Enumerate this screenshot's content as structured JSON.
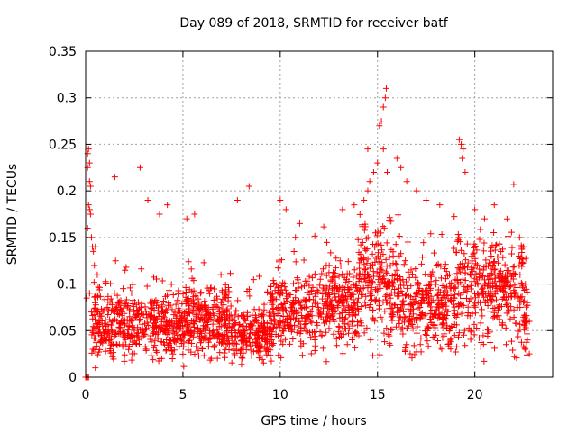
{
  "chart_data": {
    "type": "scatter",
    "title": "Day 089 of 2018, SRMTID for receiver batf",
    "xlabel": "GPS time / hours",
    "ylabel": "SRMTID / TECUs",
    "xlim": [
      0,
      24
    ],
    "ylim": [
      0,
      0.35
    ],
    "x_ticks": [
      0,
      5,
      10,
      15,
      20
    ],
    "x_tick_labels": [
      "0",
      "5",
      "10",
      "15",
      "20"
    ],
    "y_ticks": [
      0,
      0.05,
      0.1,
      0.15,
      0.2,
      0.25,
      0.3,
      0.35
    ],
    "y_tick_labels": [
      "0",
      "0.05",
      "0.1",
      "0.15",
      "0.2",
      "0.25",
      "0.3",
      "0.35"
    ],
    "grid": true,
    "marker": "plus",
    "series": [
      {
        "name": "SRMTID",
        "color": "#ff0000",
        "points": [
          [
            0.0,
            0.0
          ],
          [
            0.05,
            0.0
          ],
          [
            0.1,
            0.0
          ],
          [
            0.15,
            0.0
          ],
          [
            0.1,
            0.24
          ],
          [
            0.15,
            0.245
          ],
          [
            0.2,
            0.23
          ],
          [
            0.1,
            0.225
          ],
          [
            0.2,
            0.21
          ],
          [
            0.25,
            0.205
          ],
          [
            0.15,
            0.185
          ],
          [
            0.2,
            0.18
          ],
          [
            0.25,
            0.175
          ],
          [
            0.1,
            0.16
          ],
          [
            0.3,
            0.15
          ],
          [
            0.35,
            0.14
          ],
          [
            0.4,
            0.135
          ],
          [
            0.5,
            0.14
          ],
          [
            0.45,
            0.12
          ],
          [
            0.6,
            0.11
          ],
          [
            0.05,
            0.085
          ],
          [
            0.2,
            0.09
          ],
          [
            0.3,
            0.07
          ],
          [
            0.35,
            0.05
          ],
          [
            0.4,
            0.03
          ],
          [
            0.5,
            0.01
          ],
          [
            1.5,
            0.215
          ],
          [
            2.8,
            0.225
          ],
          [
            3.2,
            0.19
          ],
          [
            3.8,
            0.175
          ],
          [
            4.2,
            0.185
          ],
          [
            5.2,
            0.17
          ],
          [
            5.6,
            0.175
          ],
          [
            7.8,
            0.19
          ],
          [
            8.4,
            0.205
          ],
          [
            10.0,
            0.19
          ],
          [
            10.3,
            0.18
          ],
          [
            11.0,
            0.165
          ],
          [
            13.2,
            0.18
          ],
          [
            13.8,
            0.185
          ],
          [
            14.3,
            0.19
          ],
          [
            14.5,
            0.2
          ],
          [
            14.6,
            0.21
          ],
          [
            14.8,
            0.22
          ],
          [
            14.5,
            0.245
          ],
          [
            15.0,
            0.23
          ],
          [
            15.1,
            0.27
          ],
          [
            15.2,
            0.275
          ],
          [
            15.3,
            0.29
          ],
          [
            15.4,
            0.3
          ],
          [
            15.45,
            0.31
          ],
          [
            15.3,
            0.245
          ],
          [
            15.5,
            0.22
          ],
          [
            16.0,
            0.235
          ],
          [
            16.2,
            0.225
          ],
          [
            16.5,
            0.21
          ],
          [
            17.0,
            0.2
          ],
          [
            17.5,
            0.19
          ],
          [
            18.2,
            0.185
          ],
          [
            19.2,
            0.255
          ],
          [
            19.3,
            0.25
          ],
          [
            19.4,
            0.245
          ],
          [
            19.35,
            0.235
          ],
          [
            19.5,
            0.22
          ],
          [
            20.0,
            0.18
          ],
          [
            20.5,
            0.17
          ],
          [
            21.0,
            0.185
          ],
          [
            22.0,
            0.207
          ],
          [
            22.3,
            0.15
          ],
          [
            22.5,
            0.14
          ],
          [
            22.6,
            0.1
          ],
          [
            22.7,
            0.08
          ],
          [
            22.8,
            0.06
          ],
          [
            22.7,
            0.04
          ],
          [
            22.6,
            0.03
          ],
          [
            22.8,
            0.025
          ]
        ]
      }
    ]
  }
}
